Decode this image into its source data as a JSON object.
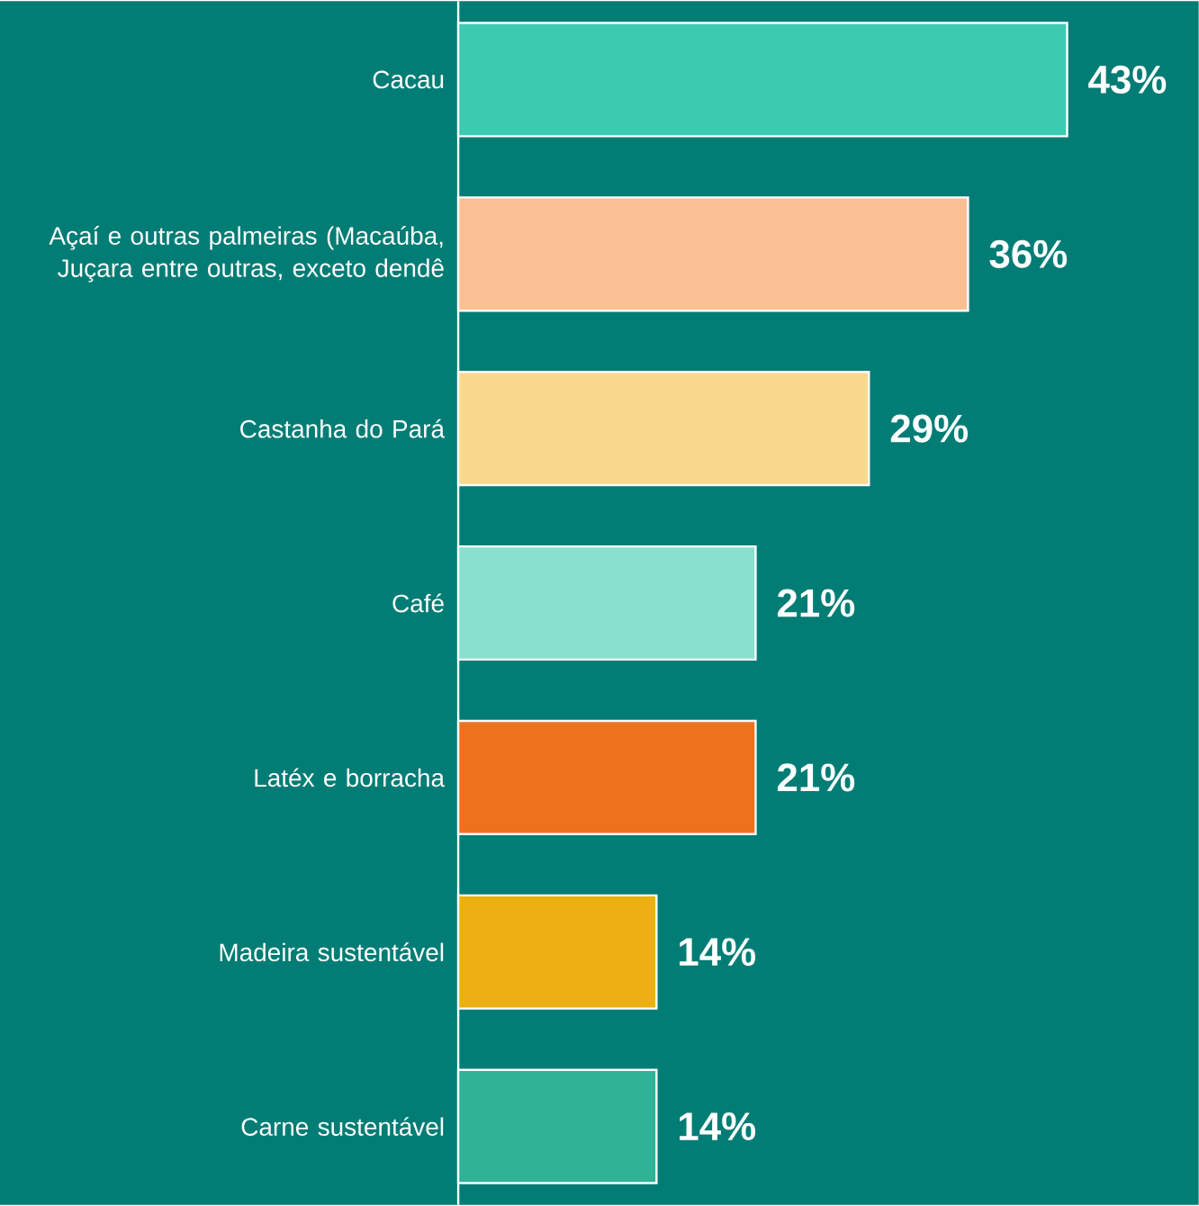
{
  "chart_data": {
    "type": "bar",
    "orientation": "horizontal",
    "categories": [
      "Cacau",
      "Açaí e outras palmeiras (Macaúba, Juçara entre outras, exceto dendê",
      "Castanha do Pará",
      "Café",
      "Latéx e borracha",
      "Madeira sustentável",
      "Carne sustentável"
    ],
    "values": [
      43,
      36,
      29,
      21,
      21,
      14,
      14
    ],
    "value_labels": [
      "43%",
      "36%",
      "29%",
      "21%",
      "21%",
      "14%",
      "14%"
    ],
    "colors": [
      "#3ccbb0",
      "#fbbf94",
      "#f8d98c",
      "#8ae0cf",
      "#ee721e",
      "#ecb013",
      "#2fb296"
    ]
  }
}
